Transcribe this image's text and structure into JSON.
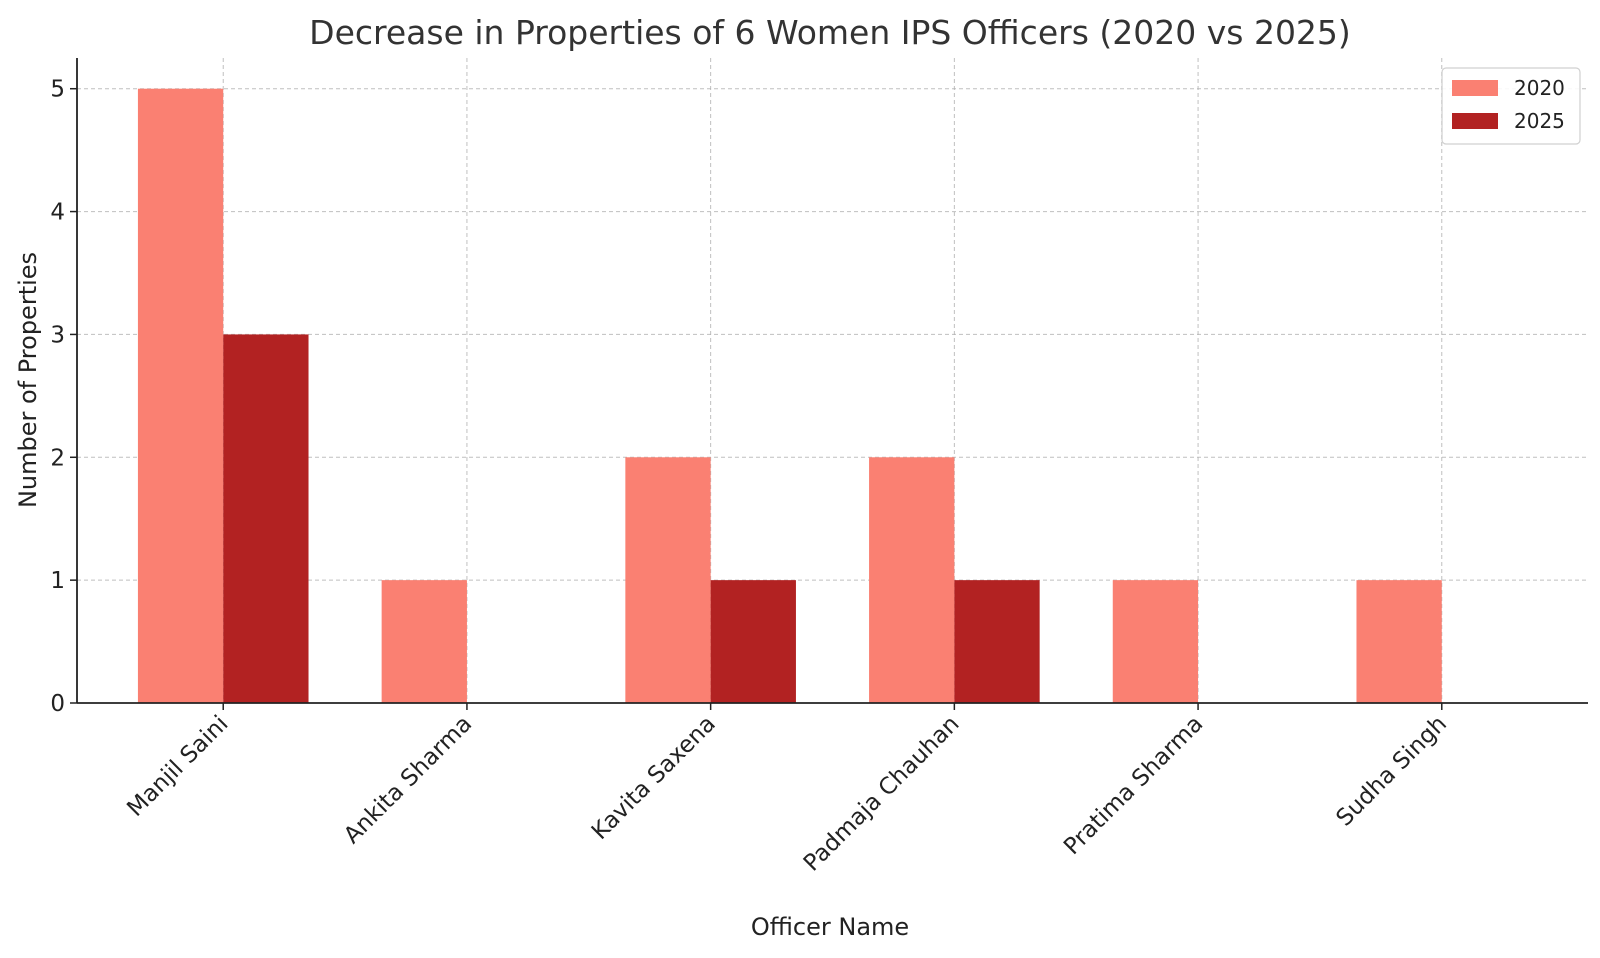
{
  "chart_data": {
    "type": "bar",
    "title": "Decrease in Properties of 6 Women IPS Officers (2020 vs 2025)",
    "xlabel": "Officer Name",
    "ylabel": "Number of Properties",
    "categories": [
      "Manjil Saini",
      "Ankita Sharma",
      "Kavita Saxena",
      "Padmaja Chauhan",
      "Pratima Sharma",
      "Sudha Singh"
    ],
    "series": [
      {
        "name": "2020",
        "values": [
          5,
          1,
          2,
          2,
          1,
          1
        ],
        "color": "#fa8072"
      },
      {
        "name": "2025",
        "values": [
          3,
          0,
          1,
          1,
          0,
          0
        ],
        "color": "#b22222"
      }
    ],
    "ylim": [
      0,
      5.25
    ],
    "yticks": [
      "0",
      "1",
      "2",
      "3",
      "4",
      "5"
    ],
    "grid": true,
    "legend_position": "top-right"
  }
}
